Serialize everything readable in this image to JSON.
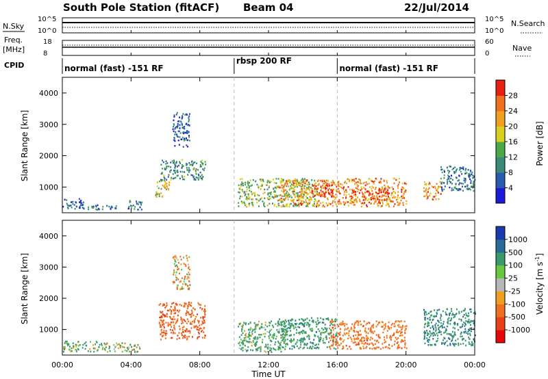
{
  "header": {
    "station": "South Pole Station (fitACF)",
    "beam": "Beam 04",
    "date": "22/Jul/2014"
  },
  "top_panels": {
    "nsky_label": "N.Sky",
    "nsky_ticks": [
      "10^5",
      "10^0"
    ],
    "nsearch_label": "N.Search",
    "nsearch_ticks": [
      "10^5",
      "10^0"
    ],
    "freq_label_1": "Freq.",
    "freq_label_2": "[MHz]",
    "freq_ticks": [
      "18",
      "8"
    ],
    "nave_label": "Nave",
    "nave_ticks": [
      "60",
      "0"
    ],
    "cpid_label": "CPID"
  },
  "cpid_segments": [
    {
      "label": "normal (fast) -151 RF",
      "start": 0,
      "end": 10
    },
    {
      "label": "rbsp 200 RF",
      "start": 10,
      "end": 16
    },
    {
      "label": "normal (fast) -151 RF",
      "start": 16,
      "end": 24
    }
  ],
  "axes": {
    "ylabel": "Slant Range [km]",
    "yticks": [
      "1000",
      "2000",
      "3000",
      "4000"
    ],
    "xlabel": "Time UT",
    "xticks": [
      "00:00",
      "04:00",
      "08:00",
      "12:00",
      "16:00",
      "20:00",
      "00:00"
    ]
  },
  "colorbars": {
    "power": {
      "label": "Power [dB]",
      "ticks": [
        "4",
        "8",
        "12",
        "16",
        "20",
        "24",
        "28"
      ],
      "colors": [
        "#1a1ad8",
        "#2a5ab0",
        "#3a8a78",
        "#4aa84a",
        "#d8d020",
        "#f0a020",
        "#f07020",
        "#e82010"
      ]
    },
    "velocity": {
      "label": "Velocity [m s",
      "label_sup": "-1",
      "label_end": "]",
      "ticks": [
        "1000",
        "500",
        "100",
        "25",
        "-25",
        "-100",
        "-500",
        "-1000"
      ],
      "colors": [
        "#1a3ab0",
        "#2a6a98",
        "#3a9a6a",
        "#6ac840",
        "#b8b8b8",
        "#f0a020",
        "#f07020",
        "#e84018",
        "#e80808"
      ]
    }
  },
  "chart_data": [
    {
      "type": "heatmap",
      "title": "Power",
      "xlabel": "Time UT",
      "ylabel": "Slant Range [km]",
      "xlim_hours": [
        0,
        24
      ],
      "ylim_km": [
        180,
        4500
      ],
      "colorbar": "Power [dB]",
      "clim": [
        0,
        30
      ],
      "regions": [
        {
          "t": [
            0.0,
            1.2
          ],
          "r": [
            300,
            650
          ],
          "value": 6
        },
        {
          "t": [
            1.2,
            3.5
          ],
          "r": [
            300,
            450
          ],
          "value": 7
        },
        {
          "t": [
            3.6,
            4.6
          ],
          "r": [
            300,
            600
          ],
          "value": 8
        },
        {
          "t": [
            5.4,
            6.2
          ],
          "r": [
            700,
            1300
          ],
          "value": 18
        },
        {
          "t": [
            5.7,
            8.3
          ],
          "r": [
            1250,
            1900
          ],
          "value": 10
        },
        {
          "t": [
            6.4,
            7.4
          ],
          "r": [
            2300,
            3400
          ],
          "value": 6
        },
        {
          "t": [
            10.2,
            14.8
          ],
          "r": [
            400,
            1300
          ],
          "value": 14
        },
        {
          "t": [
            12.5,
            16.2
          ],
          "r": [
            400,
            1250
          ],
          "value": 22
        },
        {
          "t": [
            14.5,
            16.0
          ],
          "r": [
            700,
            1100
          ],
          "value": 28
        },
        {
          "t": [
            16.2,
            20.0
          ],
          "r": [
            400,
            1300
          ],
          "value": 22
        },
        {
          "t": [
            17.0,
            19.0
          ],
          "r": [
            600,
            1000
          ],
          "value": 26
        },
        {
          "t": [
            21.0,
            22.0
          ],
          "r": [
            600,
            1200
          ],
          "value": 22
        },
        {
          "t": [
            22.0,
            24.0
          ],
          "r": [
            900,
            1700
          ],
          "value": 8
        }
      ]
    },
    {
      "type": "heatmap",
      "title": "Velocity",
      "xlabel": "Time UT",
      "ylabel": "Slant Range [km]",
      "xlim_hours": [
        0,
        24
      ],
      "ylim_km": [
        180,
        4500
      ],
      "colorbar": "Velocity [m s-1]",
      "clim": [
        -1000,
        1000
      ],
      "regions": [
        {
          "t": [
            0.0,
            2.0
          ],
          "r": [
            300,
            650
          ],
          "value": 150
        },
        {
          "t": [
            2.0,
            4.6
          ],
          "r": [
            300,
            600
          ],
          "value": 40
        },
        {
          "t": [
            5.6,
            8.3
          ],
          "r": [
            700,
            1900
          ],
          "value": -400
        },
        {
          "t": [
            6.4,
            7.4
          ],
          "r": [
            2300,
            3400
          ],
          "value": -80
        },
        {
          "t": [
            10.2,
            13.0
          ],
          "r": [
            300,
            1300
          ],
          "value": 200
        },
        {
          "t": [
            12.5,
            16.0
          ],
          "r": [
            400,
            1400
          ],
          "value": 300
        },
        {
          "t": [
            15.5,
            20.0
          ],
          "r": [
            400,
            1300
          ],
          "value": -300
        },
        {
          "t": [
            21.0,
            24.0
          ],
          "r": [
            500,
            1700
          ],
          "value": 400
        }
      ]
    }
  ]
}
